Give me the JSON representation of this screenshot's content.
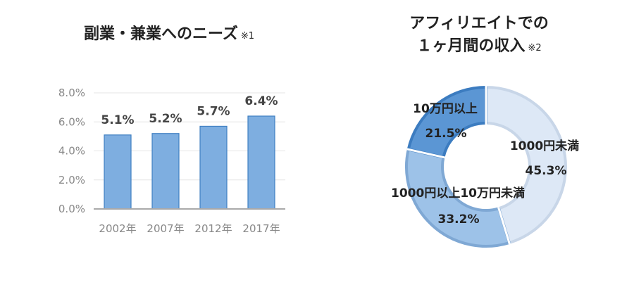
{
  "left_title": {
    "text": "副業・兼業へのニーズ",
    "note": "※1"
  },
  "right_title": {
    "line1": "アフィリエイトでの",
    "line2": "１ヶ月間の収入",
    "note": "※2"
  },
  "chart_data": [
    {
      "type": "bar",
      "title": "副業・兼業へのニーズ",
      "categories": [
        "2002年",
        "2007年",
        "2012年",
        "2017年"
      ],
      "values": [
        5.1,
        5.2,
        5.7,
        6.4
      ],
      "value_labels": [
        "5.1%",
        "5.2%",
        "5.7%",
        "6.4%"
      ],
      "y_ticks": [
        "0.0%",
        "2.0%",
        "4.0%",
        "6.0%",
        "8.0%"
      ],
      "ylim": [
        0,
        8
      ],
      "grid": true,
      "color": "#7eaee0"
    },
    {
      "type": "pie",
      "title": "アフィリエイトでの１ヶ月間の収入",
      "donut": true,
      "slices": [
        {
          "label": "1000円未満",
          "value": 45.3,
          "value_label": "45.3%",
          "color": "#dde8f6"
        },
        {
          "label": "1000円以上10万円未満",
          "value": 33.2,
          "value_label": "33.2%",
          "color": "#9dc2e8"
        },
        {
          "label": "10万円以上",
          "value": 21.5,
          "value_label": "21.5%",
          "color": "#5b96d4"
        }
      ]
    }
  ]
}
